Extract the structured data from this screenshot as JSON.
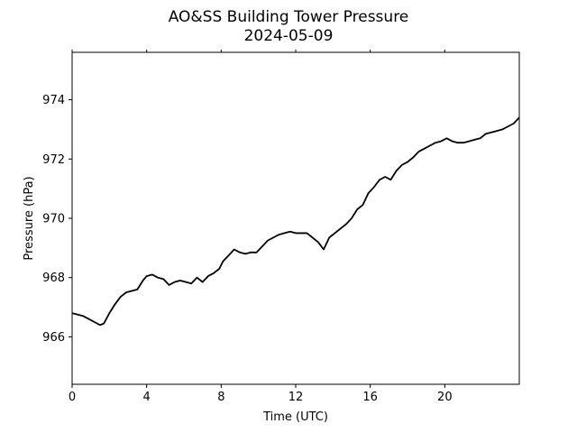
{
  "chart_data": {
    "type": "line",
    "title": "AO&SS Building Tower Pressure",
    "subtitle": "2024-05-09",
    "xlabel": "Time (UTC)",
    "ylabel": "Pressure (hPa)",
    "xlim": [
      0,
      24
    ],
    "ylim": [
      964.4,
      975.6
    ],
    "xticks": [
      0,
      4,
      8,
      12,
      16,
      20
    ],
    "xtick_labels": [
      "0",
      "4",
      "8",
      "12",
      "16",
      "20"
    ],
    "yticks": [
      966,
      968,
      970,
      972,
      974
    ],
    "ytick_labels": [
      "966",
      "968",
      "970",
      "972",
      "974"
    ],
    "grid": false,
    "legend": "none",
    "series": [
      {
        "color": "#000000",
        "x": [
          0.0,
          0.3,
          0.6,
          0.9,
          1.2,
          1.5,
          1.7,
          2.0,
          2.3,
          2.6,
          2.9,
          3.2,
          3.5,
          3.8,
          4.0,
          4.3,
          4.6,
          4.9,
          5.2,
          5.5,
          5.8,
          6.1,
          6.4,
          6.7,
          7.0,
          7.3,
          7.6,
          7.9,
          8.1,
          8.4,
          8.7,
          9.0,
          9.3,
          9.6,
          9.9,
          10.2,
          10.5,
          10.8,
          11.1,
          11.4,
          11.7,
          12.0,
          12.3,
          12.6,
          12.9,
          13.2,
          13.5,
          13.8,
          14.1,
          14.4,
          14.7,
          15.0,
          15.3,
          15.6,
          15.9,
          16.2,
          16.5,
          16.8,
          17.1,
          17.4,
          17.7,
          18.0,
          18.3,
          18.6,
          18.9,
          19.2,
          19.5,
          19.8,
          20.1,
          20.4,
          20.7,
          21.0,
          21.3,
          21.6,
          21.9,
          22.2,
          22.5,
          22.8,
          23.1,
          23.4,
          23.7,
          24.0
        ],
        "y": [
          966.8,
          966.75,
          966.7,
          966.6,
          966.5,
          966.4,
          966.45,
          966.8,
          967.1,
          967.35,
          967.5,
          967.55,
          967.6,
          967.9,
          968.05,
          968.1,
          968.0,
          967.95,
          967.75,
          967.85,
          967.9,
          967.85,
          967.8,
          968.0,
          967.85,
          968.05,
          968.15,
          968.3,
          968.55,
          968.75,
          968.95,
          968.85,
          968.8,
          968.85,
          968.85,
          969.05,
          969.25,
          969.35,
          969.45,
          969.5,
          969.55,
          969.5,
          969.5,
          969.5,
          969.35,
          969.2,
          968.95,
          969.35,
          969.5,
          969.65,
          969.8,
          970.0,
          970.3,
          970.45,
          970.85,
          971.05,
          971.3,
          971.4,
          971.3,
          971.6,
          971.8,
          971.9,
          972.05,
          972.25,
          972.35,
          972.45,
          972.55,
          972.6,
          972.7,
          972.6,
          972.55,
          972.55,
          972.6,
          972.65,
          972.7,
          972.85,
          972.9,
          972.95,
          973.0,
          973.1,
          973.2,
          973.4
        ]
      }
    ]
  }
}
